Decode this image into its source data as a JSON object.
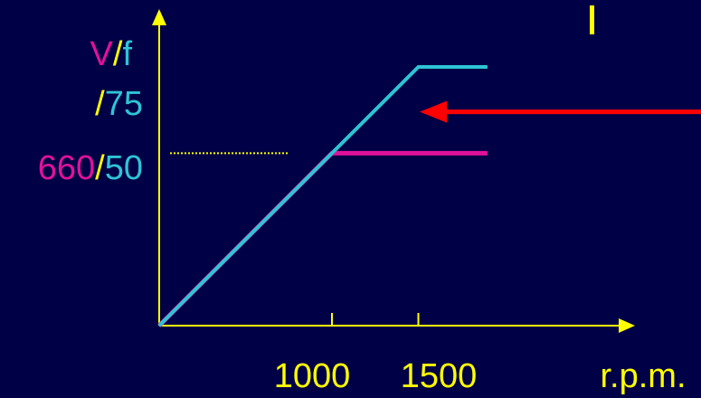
{
  "colors": {
    "background": "#000046",
    "axis": "#ffff00",
    "voltage": "#e0119b",
    "frequency": "#2ec4d6",
    "arrow": "#ff0000"
  },
  "chart_data": {
    "type": "line",
    "y_axis_label": {
      "v": "V",
      "sep": "/",
      "f": "f"
    },
    "y_tick_labels": [
      {
        "left": "",
        "sep": "/",
        "right": "75",
        "level": 75
      },
      {
        "left": "660",
        "sep": "/",
        "right": "50",
        "level": 50
      }
    ],
    "x_tick_labels": [
      "1000",
      "1500"
    ],
    "x_ticks": [
      1000,
      1500
    ],
    "x_unit_label": "r.p.m.",
    "xlim": [
      0,
      2000
    ],
    "ylim": [
      0,
      75
    ],
    "grid": false,
    "reference_line": {
      "from_x": 0,
      "to_x": 1000,
      "y": 50,
      "style": "dotted"
    },
    "series": [
      {
        "color": "voltage",
        "x": [
          0,
          1000,
          1900
        ],
        "y": [
          0,
          50,
          50
        ]
      },
      {
        "color": "frequency",
        "x": [
          0,
          1500,
          1900
        ],
        "y": [
          0,
          75,
          75
        ]
      }
    ],
    "annotation_arrow": {
      "from_x": 2000,
      "to_x": 1500,
      "y": 62,
      "direction": "left"
    }
  }
}
